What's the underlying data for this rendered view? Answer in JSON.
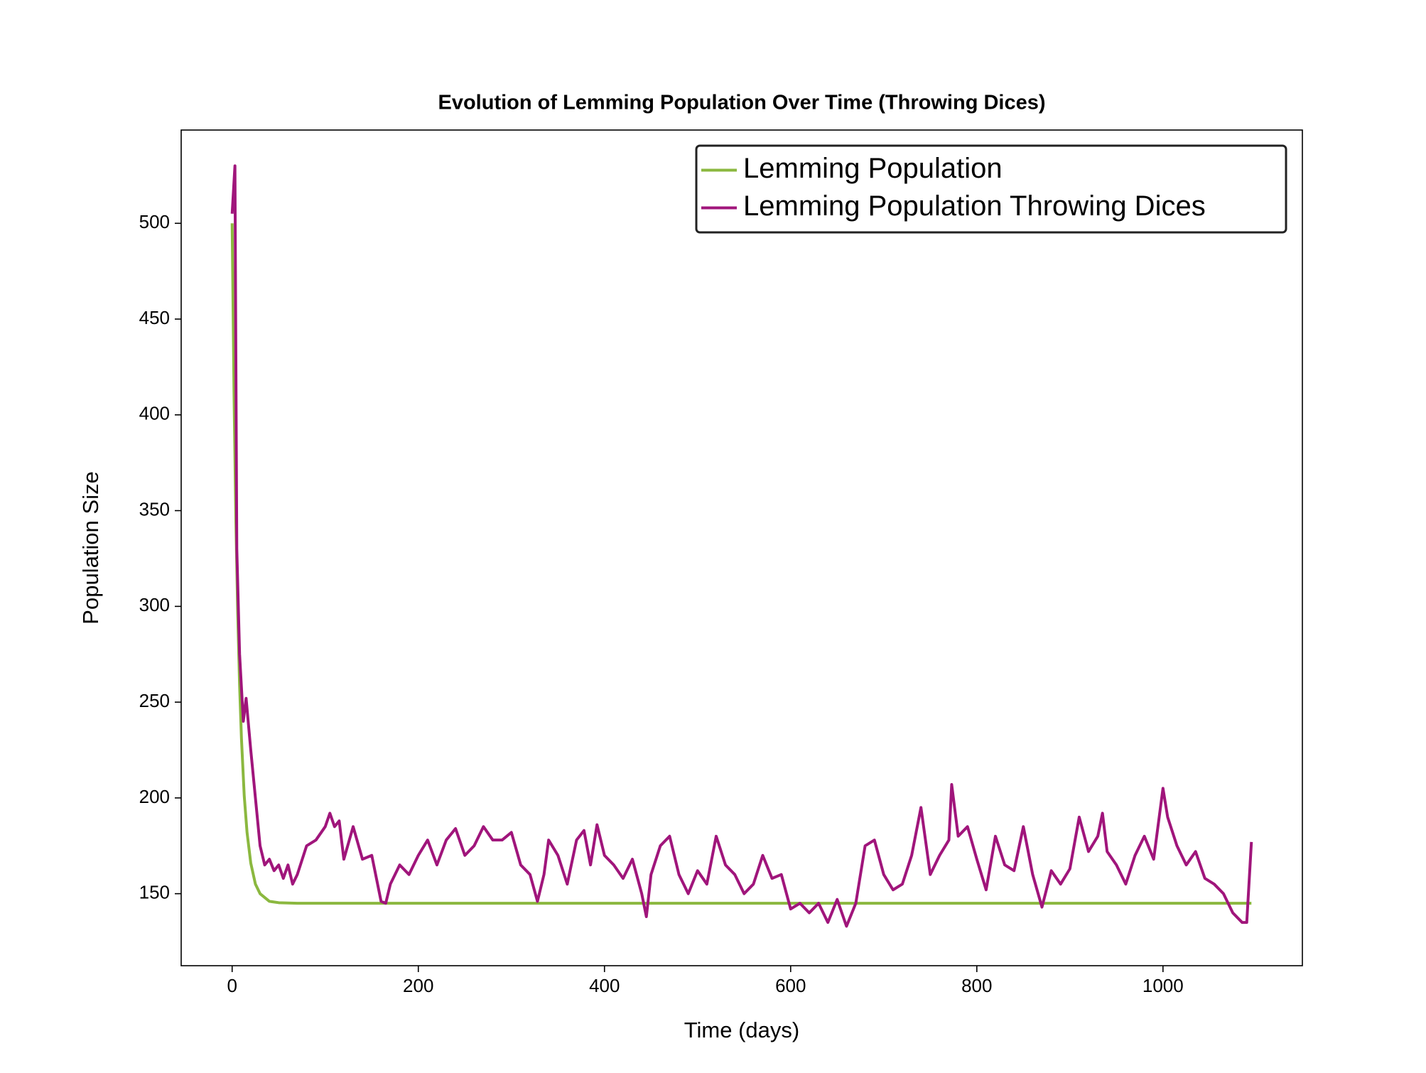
{
  "chart_data": {
    "type": "line",
    "title": "Evolution of Lemming Population Over Time (Throwing Dices)",
    "x_label": "Time (days)",
    "y_label": "Population Size",
    "xlim": [
      -54.75,
      1149.75
    ],
    "ylim": [
      112.4,
      548.7
    ],
    "xticks": [
      0,
      200,
      400,
      600,
      800,
      1000
    ],
    "yticks": [
      150,
      200,
      250,
      300,
      350,
      400,
      450,
      500
    ],
    "legend": "upper right",
    "grid": false,
    "series": [
      {
        "name": "Lemming Population",
        "color": "#8bb83f",
        "x": [
          0,
          2,
          4,
          6,
          8,
          10,
          13,
          16,
          20,
          25,
          30,
          40,
          50,
          70,
          1095
        ],
        "values": [
          500,
          412,
          345,
          296,
          259,
          231,
          201,
          182,
          166,
          155,
          150,
          146,
          145.3,
          145,
          145
        ]
      },
      {
        "name": "Lemming Population Throwing Dices",
        "color": "#a0157b",
        "x": [
          0,
          3,
          5,
          8,
          12,
          15,
          20,
          25,
          30,
          35,
          40,
          45,
          50,
          55,
          60,
          65,
          70,
          80,
          90,
          100,
          105,
          110,
          115,
          120,
          130,
          140,
          150,
          160,
          165,
          170,
          180,
          190,
          200,
          210,
          220,
          230,
          240,
          250,
          260,
          270,
          280,
          290,
          300,
          310,
          320,
          328,
          335,
          340,
          350,
          360,
          370,
          378,
          385,
          392,
          400,
          410,
          420,
          430,
          440,
          445,
          450,
          460,
          470,
          480,
          490,
          500,
          510,
          520,
          530,
          540,
          550,
          560,
          570,
          580,
          590,
          600,
          610,
          620,
          630,
          640,
          650,
          660,
          670,
          680,
          690,
          700,
          710,
          720,
          730,
          740,
          750,
          760,
          770,
          773,
          780,
          790,
          800,
          810,
          820,
          830,
          840,
          850,
          860,
          870,
          880,
          890,
          900,
          910,
          920,
          930,
          935,
          940,
          950,
          960,
          970,
          980,
          990,
          1000,
          1005,
          1015,
          1025,
          1035,
          1045,
          1055,
          1065,
          1075,
          1085,
          1090,
          1095
        ],
        "values": [
          505,
          530,
          330,
          275,
          240,
          252,
          225,
          200,
          175,
          165,
          168,
          162,
          165,
          158,
          165,
          155,
          160,
          175,
          178,
          185,
          192,
          185,
          188,
          168,
          185,
          168,
          170,
          146,
          145,
          155,
          165,
          160,
          170,
          178,
          165,
          178,
          184,
          170,
          175,
          185,
          178,
          178,
          182,
          165,
          160,
          146,
          160,
          178,
          170,
          155,
          178,
          183,
          165,
          186,
          170,
          165,
          158,
          168,
          150,
          138,
          160,
          175,
          180,
          160,
          150,
          162,
          155,
          180,
          165,
          160,
          150,
          155,
          170,
          158,
          160,
          142,
          145,
          140,
          145,
          135,
          147,
          133,
          145,
          175,
          178,
          160,
          152,
          155,
          170,
          195,
          160,
          170,
          178,
          207,
          180,
          185,
          168,
          152,
          180,
          165,
          162,
          185,
          160,
          143,
          162,
          155,
          163,
          190,
          172,
          180,
          192,
          172,
          165,
          155,
          170,
          180,
          168,
          205,
          190,
          175,
          165,
          172,
          158,
          155,
          150,
          140,
          135,
          135,
          177
        ]
      }
    ]
  }
}
